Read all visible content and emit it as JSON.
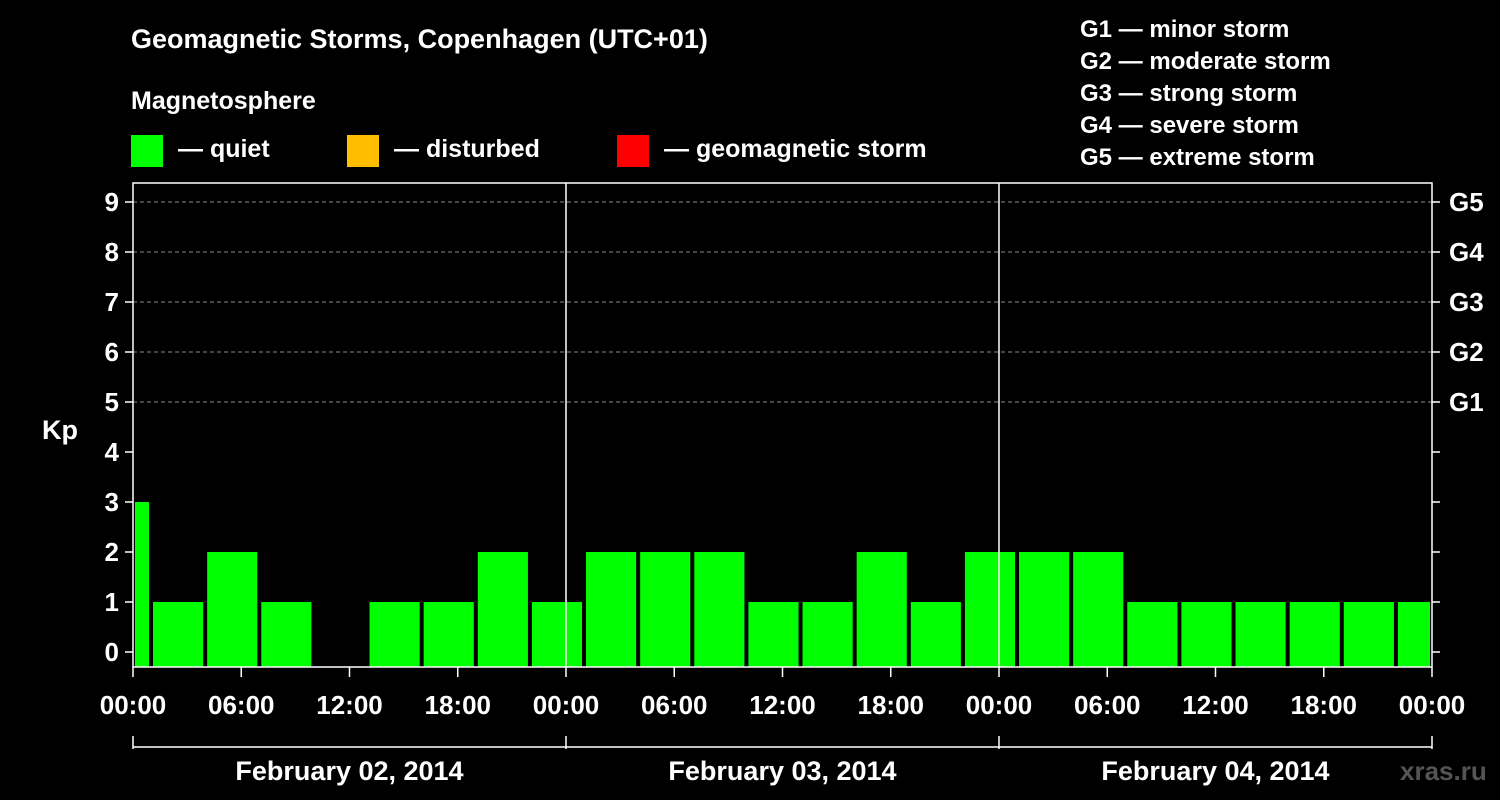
{
  "header": {
    "title": "Geomagnetic Storms, Copenhagen (UTC+01)",
    "subtitle": "Magnetosphere"
  },
  "legend": [
    {
      "label": "— quiet",
      "color": "#00ff00"
    },
    {
      "label": "— disturbed",
      "color": "#ffbf00"
    },
    {
      "label": "— geomagnetic storm",
      "color": "#ff0000"
    }
  ],
  "storm_scale": [
    "G1 — minor storm",
    "G2 — moderate storm",
    "G3 — strong storm",
    "G4 — severe storm",
    "G5 — extreme storm"
  ],
  "watermark": "xras.ru",
  "chart_data": {
    "type": "bar",
    "title": "Geomagnetic Storms, Copenhagen (UTC+01)",
    "ylabel": "Kp",
    "ylim": [
      0,
      9
    ],
    "yticks": [
      "0",
      "1",
      "2",
      "3",
      "4",
      "5",
      "6",
      "7",
      "8",
      "9"
    ],
    "right_ticks": [
      {
        "kp": 5,
        "label": "G1"
      },
      {
        "kp": 6,
        "label": "G2"
      },
      {
        "kp": 7,
        "label": "G3"
      },
      {
        "kp": 8,
        "label": "G4"
      },
      {
        "kp": 9,
        "label": "G5"
      }
    ],
    "grid": "dashed horizontal at Kp 5-9",
    "x_tick_labels": [
      "00:00",
      "06:00",
      "12:00",
      "18:00",
      "00:00",
      "06:00",
      "12:00",
      "18:00",
      "00:00",
      "06:00",
      "12:00",
      "18:00",
      "00:00"
    ],
    "days": [
      "February 02, 2014",
      "February 03, 2014",
      "February 04, 2014"
    ],
    "interval_hours": 3,
    "x_start_hour": -2,
    "x_range_hours": [
      0,
      72
    ],
    "values": [
      3,
      1,
      2,
      1,
      0,
      1,
      1,
      2,
      1,
      2,
      2,
      2,
      1,
      1,
      2,
      1,
      2,
      2,
      2,
      1,
      1,
      1,
      1,
      1,
      1
    ],
    "color": "#00ff00"
  }
}
